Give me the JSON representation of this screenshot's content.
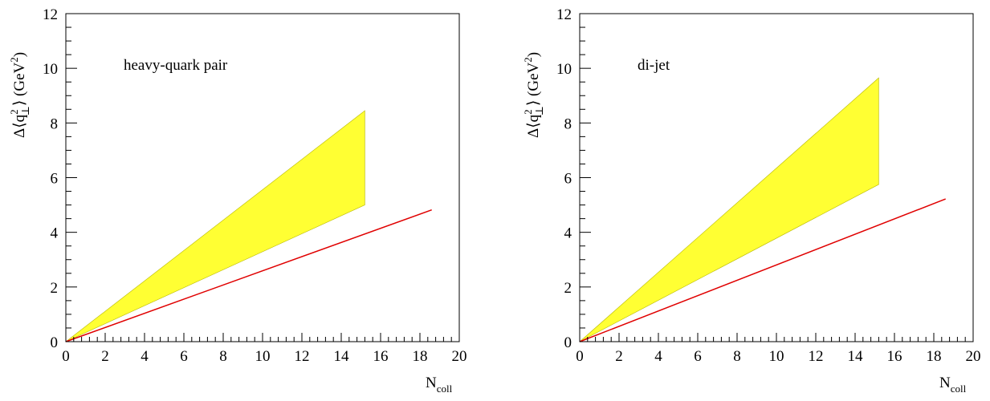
{
  "chart_data": [
    {
      "type": "area",
      "annotation": "heavy-quark pair",
      "xlabel": {
        "main": "N",
        "sub": "coll"
      },
      "ylabel": {
        "prefix": "Δ⟨q",
        "sub": "⊥",
        "sup": "2",
        "suffix": "⟩ (GeV",
        "unit_sup": "2",
        "close": ")"
      },
      "xlim": [
        0,
        20
      ],
      "ylim": [
        0,
        12
      ],
      "xticks": [
        "0",
        "2",
        "4",
        "6",
        "8",
        "10",
        "12",
        "14",
        "16",
        "18",
        "20"
      ],
      "yticks": [
        "0",
        "2",
        "4",
        "6",
        "8",
        "10",
        "12"
      ],
      "band": {
        "color": "#ffff33",
        "x": [
          0,
          15.2
        ],
        "upper": [
          0,
          8.45
        ],
        "lower": [
          0,
          5.0
        ]
      },
      "line": {
        "color": "#e00000",
        "x": [
          0,
          18.6
        ],
        "y": [
          0,
          4.82
        ]
      }
    },
    {
      "type": "area",
      "annotation": "di-jet",
      "xlabel": {
        "main": "N",
        "sub": "coll"
      },
      "ylabel": {
        "prefix": "Δ⟨q",
        "sub": "⊥",
        "sup": "2",
        "suffix": "⟩ (GeV",
        "unit_sup": "2",
        "close": ")"
      },
      "xlim": [
        0,
        20
      ],
      "ylim": [
        0,
        12
      ],
      "xticks": [
        "0",
        "2",
        "4",
        "6",
        "8",
        "10",
        "12",
        "14",
        "16",
        "18",
        "20"
      ],
      "yticks": [
        "0",
        "2",
        "4",
        "6",
        "8",
        "10",
        "12"
      ],
      "band": {
        "color": "#ffff33",
        "x": [
          0,
          15.2
        ],
        "upper": [
          0,
          9.65
        ],
        "lower": [
          0,
          5.75
        ]
      },
      "line": {
        "color": "#e00000",
        "x": [
          0,
          18.6
        ],
        "y": [
          0,
          5.22
        ]
      }
    }
  ]
}
